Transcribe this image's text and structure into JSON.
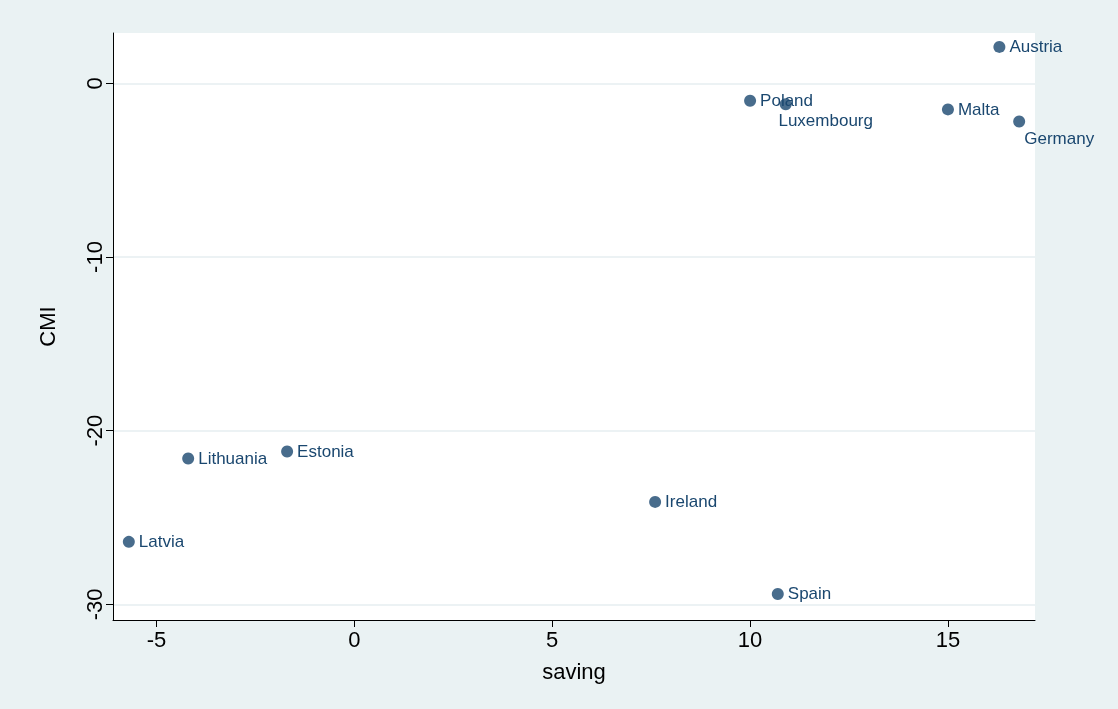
{
  "chart_data": {
    "type": "scatter",
    "xlabel": "saving",
    "ylabel": "CMI",
    "x": [
      16.3,
      10.0,
      10.9,
      15.0,
      16.8,
      -4.2,
      -1.7,
      7.6,
      -5.7,
      10.7
    ],
    "series": [
      {
        "color": "#1a476f",
        "values": [
          2.1,
          -1.0,
          -1.2,
          -1.5,
          -2.2,
          -21.6,
          -21.2,
          -24.1,
          -26.4,
          -29.4
        ]
      }
    ],
    "annotations": [
      {
        "text": "Austria",
        "x": 16.3,
        "y": 2.1
      },
      {
        "text": "Poland",
        "x": 10.0,
        "y": -1.0
      },
      {
        "text": "Luxembourg",
        "x": 10.9,
        "y": -1.2
      },
      {
        "text": "Malta",
        "x": 15.0,
        "y": -1.5
      },
      {
        "text": "Germany",
        "x": 16.8,
        "y": -2.2
      },
      {
        "text": "Lithuania",
        "x": -4.2,
        "y": -21.6
      },
      {
        "text": "Estonia",
        "x": -1.7,
        "y": -21.2
      },
      {
        "text": "Ireland",
        "x": 7.6,
        "y": -24.1
      },
      {
        "text": "Latvia",
        "x": -5.7,
        "y": -26.4
      },
      {
        "text": "Spain",
        "x": 10.7,
        "y": -29.4
      }
    ],
    "xlim": [
      -6.1,
      17.2
    ],
    "xticks": [
      -5,
      0,
      5,
      10,
      15
    ],
    "ylim": [
      -30.9,
      2.9
    ],
    "yticks": [
      -30,
      -20,
      -10,
      0
    ],
    "grid": "y",
    "marker": "circle"
  }
}
